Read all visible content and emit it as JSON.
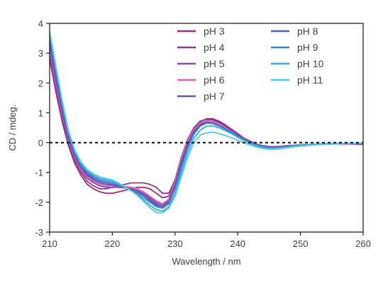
{
  "chart_data": {
    "type": "line",
    "xlabel": "Wavelength / nm",
    "ylabel": "CD / mdeg.",
    "xlim": [
      210,
      260
    ],
    "ylim": [
      -3,
      4
    ],
    "x_ticks": [
      210,
      220,
      230,
      240,
      250,
      260
    ],
    "y_ticks": [
      -3,
      -2,
      -1,
      0,
      1,
      2,
      3,
      4
    ],
    "grid": false,
    "legend": "top-right, two columns",
    "zero_line": "dotted black line at y = 0",
    "x": [
      210,
      211,
      212,
      213,
      214,
      215,
      216,
      217,
      218,
      219,
      220,
      221,
      222,
      223,
      224,
      225,
      226,
      227,
      228,
      229,
      230,
      231,
      232,
      233,
      234,
      235,
      236,
      237,
      238,
      239,
      240,
      241,
      242,
      243,
      244,
      245,
      246,
      247,
      248,
      249,
      250,
      251,
      252,
      253,
      254,
      255,
      256,
      257,
      258,
      259,
      260
    ],
    "series": [
      {
        "name": "pH 3",
        "color": "#a0287d",
        "values": [
          2.8,
          1.7,
          0.7,
          -0.1,
          -0.7,
          -1.1,
          -1.4,
          -1.55,
          -1.65,
          -1.7,
          -1.7,
          -1.65,
          -1.6,
          -1.55,
          -1.5,
          -1.5,
          -1.55,
          -1.7,
          -1.85,
          -1.8,
          -1.3,
          -0.6,
          0.0,
          0.45,
          0.7,
          0.8,
          0.8,
          0.72,
          0.6,
          0.45,
          0.3,
          0.15,
          0.05,
          -0.05,
          -0.12,
          -0.15,
          -0.15,
          -0.12,
          -0.1,
          -0.1,
          -0.08,
          -0.07,
          -0.06,
          -0.05,
          -0.05,
          -0.05,
          -0.04,
          -0.04,
          -0.04,
          -0.05,
          -0.06
        ]
      },
      {
        "name": "pH 4",
        "color": "#8b3a8f",
        "values": [
          3.0,
          1.8,
          0.8,
          0.0,
          -0.6,
          -1.0,
          -1.3,
          -1.45,
          -1.55,
          -1.55,
          -1.5,
          -1.45,
          -1.4,
          -1.35,
          -1.35,
          -1.35,
          -1.4,
          -1.5,
          -1.7,
          -1.7,
          -1.25,
          -0.5,
          0.1,
          0.5,
          0.72,
          0.78,
          0.76,
          0.68,
          0.56,
          0.42,
          0.28,
          0.14,
          0.04,
          -0.05,
          -0.1,
          -0.13,
          -0.13,
          -0.12,
          -0.1,
          -0.09,
          -0.08,
          -0.07,
          -0.06,
          -0.05,
          -0.05,
          -0.05,
          -0.04,
          -0.04,
          -0.05,
          -0.05,
          -0.06
        ]
      },
      {
        "name": "pH 5",
        "color": "#9a45c0",
        "values": [
          3.1,
          1.9,
          0.9,
          0.05,
          -0.55,
          -0.95,
          -1.2,
          -1.35,
          -1.45,
          -1.5,
          -1.5,
          -1.5,
          -1.52,
          -1.55,
          -1.6,
          -1.7,
          -1.85,
          -2.0,
          -2.1,
          -1.95,
          -1.35,
          -0.6,
          0.0,
          0.42,
          0.64,
          0.72,
          0.7,
          0.62,
          0.5,
          0.38,
          0.24,
          0.12,
          0.02,
          -0.06,
          -0.12,
          -0.15,
          -0.15,
          -0.13,
          -0.11,
          -0.1,
          -0.08,
          -0.07,
          -0.06,
          -0.05,
          -0.05,
          -0.04,
          -0.04,
          -0.04,
          -0.04,
          -0.05,
          -0.05
        ]
      },
      {
        "name": "pH 6",
        "color": "#e060b0",
        "values": [
          3.2,
          2.0,
          1.0,
          0.1,
          -0.5,
          -0.9,
          -1.15,
          -1.3,
          -1.4,
          -1.45,
          -1.45,
          -1.45,
          -1.47,
          -1.5,
          -1.55,
          -1.65,
          -1.8,
          -1.95,
          -2.05,
          -1.9,
          -1.3,
          -0.55,
          0.05,
          0.45,
          0.66,
          0.73,
          0.71,
          0.63,
          0.51,
          0.38,
          0.24,
          0.12,
          0.02,
          -0.06,
          -0.11,
          -0.14,
          -0.14,
          -0.12,
          -0.1,
          -0.09,
          -0.08,
          -0.07,
          -0.06,
          -0.05,
          -0.05,
          -0.04,
          -0.04,
          -0.04,
          -0.04,
          -0.05,
          -0.05
        ]
      },
      {
        "name": "pH 7",
        "color": "#6a55b0",
        "values": [
          3.3,
          2.1,
          1.05,
          0.15,
          -0.45,
          -0.85,
          -1.1,
          -1.25,
          -1.35,
          -1.4,
          -1.42,
          -1.45,
          -1.5,
          -1.55,
          -1.62,
          -1.75,
          -1.9,
          -2.05,
          -2.15,
          -2.0,
          -1.4,
          -0.65,
          -0.05,
          0.38,
          0.6,
          0.68,
          0.66,
          0.58,
          0.47,
          0.36,
          0.23,
          0.11,
          0.01,
          -0.07,
          -0.12,
          -0.15,
          -0.15,
          -0.13,
          -0.11,
          -0.1,
          -0.08,
          -0.07,
          -0.06,
          -0.05,
          -0.05,
          -0.04,
          -0.04,
          -0.04,
          -0.04,
          -0.05,
          -0.05
        ]
      },
      {
        "name": "pH 8",
        "color": "#4a62b8",
        "values": [
          3.5,
          2.3,
          1.2,
          0.25,
          -0.4,
          -0.8,
          -1.05,
          -1.2,
          -1.3,
          -1.35,
          -1.4,
          -1.45,
          -1.5,
          -1.58,
          -1.65,
          -1.78,
          -1.95,
          -2.1,
          -2.2,
          -2.05,
          -1.5,
          -0.75,
          -0.1,
          0.35,
          0.58,
          0.66,
          0.64,
          0.56,
          0.45,
          0.34,
          0.21,
          0.1,
          0.0,
          -0.08,
          -0.13,
          -0.16,
          -0.16,
          -0.14,
          -0.12,
          -0.1,
          -0.08,
          -0.07,
          -0.06,
          -0.05,
          -0.04,
          -0.04,
          -0.03,
          -0.03,
          -0.03,
          -0.03,
          -0.03
        ]
      },
      {
        "name": "pH 9",
        "color": "#3c82c8",
        "values": [
          3.6,
          2.4,
          1.3,
          0.3,
          -0.35,
          -0.75,
          -1.0,
          -1.15,
          -1.25,
          -1.3,
          -1.35,
          -1.42,
          -1.5,
          -1.6,
          -1.7,
          -1.85,
          -2.0,
          -2.15,
          -2.2,
          -2.05,
          -1.55,
          -0.85,
          -0.2,
          0.28,
          0.55,
          0.65,
          0.65,
          0.58,
          0.47,
          0.35,
          0.22,
          0.1,
          0.0,
          -0.08,
          -0.14,
          -0.17,
          -0.17,
          -0.15,
          -0.12,
          -0.1,
          -0.08,
          -0.07,
          -0.06,
          -0.05,
          -0.04,
          -0.04,
          -0.03,
          -0.03,
          -0.03,
          -0.02,
          -0.02
        ]
      },
      {
        "name": "pH 10",
        "color": "#2ab0e0",
        "values": [
          3.7,
          2.5,
          1.35,
          0.35,
          -0.3,
          -0.7,
          -0.95,
          -1.1,
          -1.2,
          -1.25,
          -1.3,
          -1.4,
          -1.5,
          -1.62,
          -1.75,
          -1.92,
          -2.1,
          -2.25,
          -2.3,
          -2.15,
          -1.7,
          -1.0,
          -0.35,
          0.15,
          0.42,
          0.55,
          0.56,
          0.5,
          0.4,
          0.3,
          0.18,
          0.07,
          -0.03,
          -0.11,
          -0.16,
          -0.19,
          -0.19,
          -0.17,
          -0.14,
          -0.12,
          -0.1,
          -0.08,
          -0.07,
          -0.06,
          -0.05,
          -0.04,
          -0.03,
          -0.03,
          -0.03,
          -0.02,
          -0.02
        ]
      },
      {
        "name": "pH 11",
        "color": "#55c8f0",
        "values": [
          3.75,
          2.55,
          1.4,
          0.4,
          -0.25,
          -0.65,
          -0.9,
          -1.05,
          -1.15,
          -1.2,
          -1.25,
          -1.35,
          -1.48,
          -1.62,
          -1.78,
          -1.98,
          -2.18,
          -2.35,
          -2.35,
          -2.2,
          -1.8,
          -1.15,
          -0.5,
          0.0,
          0.25,
          0.33,
          0.35,
          0.3,
          0.24,
          0.16,
          0.08,
          0.0,
          -0.08,
          -0.15,
          -0.2,
          -0.22,
          -0.22,
          -0.2,
          -0.17,
          -0.14,
          -0.12,
          -0.1,
          -0.08,
          -0.07,
          -0.06,
          -0.05,
          -0.04,
          -0.03,
          -0.03,
          -0.02,
          -0.02
        ]
      }
    ]
  }
}
